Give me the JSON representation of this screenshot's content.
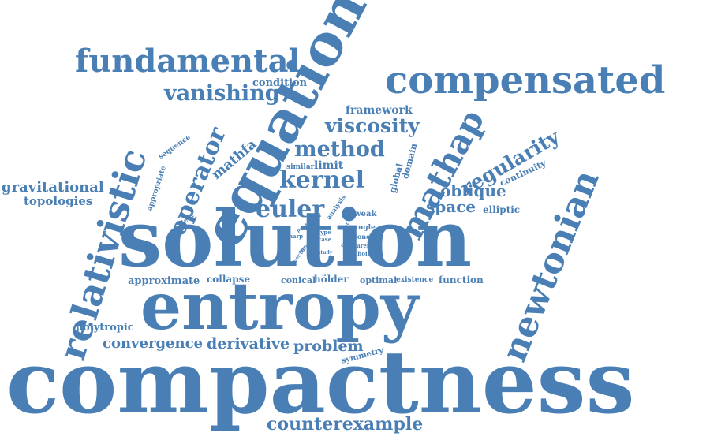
{
  "color": "#4a7fb5",
  "words": [
    {
      "id": "compactness",
      "text": "compactness"
    },
    {
      "id": "solution",
      "text": "solution"
    },
    {
      "id": "entropy",
      "text": "entropy"
    },
    {
      "id": "equation",
      "text": "equation"
    },
    {
      "id": "compensated",
      "text": "compensated"
    },
    {
      "id": "fundamental",
      "text": "fundamental"
    },
    {
      "id": "relativistic",
      "text": "relativistic"
    },
    {
      "id": "newtonian",
      "text": "newtonian"
    },
    {
      "id": "mathap",
      "text": "mathap"
    },
    {
      "id": "counterexample",
      "text": "counterexample"
    },
    {
      "id": "vanishing",
      "text": "vanishing"
    },
    {
      "id": "viscosity",
      "text": "viscosity"
    },
    {
      "id": "method",
      "text": "method"
    },
    {
      "id": "kernel",
      "text": "kernel"
    },
    {
      "id": "euler",
      "text": "euler"
    },
    {
      "id": "operator",
      "text": "operator"
    },
    {
      "id": "regularity",
      "text": "regularity"
    },
    {
      "id": "oblique",
      "text": "oblique"
    },
    {
      "id": "space",
      "text": "space"
    },
    {
      "id": "convergence",
      "text": "convergence"
    },
    {
      "id": "derivative",
      "text": "derivative"
    },
    {
      "id": "problem",
      "text": "problem"
    },
    {
      "id": "gravitational",
      "text": "gravitational"
    },
    {
      "id": "topologies",
      "text": "topologies"
    },
    {
      "id": "mathfa",
      "text": "mathfa"
    },
    {
      "id": "framework",
      "text": "framework"
    },
    {
      "id": "condition",
      "text": "condition"
    },
    {
      "id": "limit",
      "text": "limit"
    },
    {
      "id": "similar",
      "text": "similar"
    },
    {
      "id": "domain",
      "text": "domain"
    },
    {
      "id": "global",
      "text": "global"
    },
    {
      "id": "continuity",
      "text": "continuity"
    },
    {
      "id": "elliptic",
      "text": "elliptic"
    },
    {
      "id": "polytropic",
      "text": "polytropic"
    },
    {
      "id": "approximate",
      "text": "approximate"
    },
    {
      "id": "collapse",
      "text": "collapse"
    },
    {
      "id": "conical",
      "text": "conical"
    },
    {
      "id": "holder",
      "text": "hölder"
    },
    {
      "id": "optimal",
      "text": "optimal"
    },
    {
      "id": "existence",
      "text": "existence"
    },
    {
      "id": "function",
      "text": "function"
    },
    {
      "id": "symmetry",
      "text": "symmetry"
    },
    {
      "id": "sequence",
      "text": "sequence"
    },
    {
      "id": "appropriate",
      "text": "appropriate"
    },
    {
      "id": "gradient",
      "text": "gradient"
    },
    {
      "id": "establish",
      "text": "establish"
    },
    {
      "id": "analysis",
      "text": "analysis"
    },
    {
      "id": "weak",
      "text": "weak"
    },
    {
      "id": "angle",
      "text": "angle"
    },
    {
      "id": "cone",
      "text": "cone"
    },
    {
      "id": "careful",
      "text": "careful"
    },
    {
      "id": "choice",
      "text": "choice"
    },
    {
      "id": "type",
      "text": "type"
    },
    {
      "id": "case",
      "text": "case"
    },
    {
      "id": "study",
      "text": "study"
    },
    {
      "id": "sharp",
      "text": "sharp"
    },
    {
      "id": "vector",
      "text": "vector"
    },
    {
      "id": "result",
      "text": "result"
    },
    {
      "id": "proof",
      "text": "proof"
    },
    {
      "id": "set",
      "text": "set"
    },
    {
      "id": "state",
      "text": "state"
    },
    {
      "id": "term",
      "text": "term"
    }
  ]
}
